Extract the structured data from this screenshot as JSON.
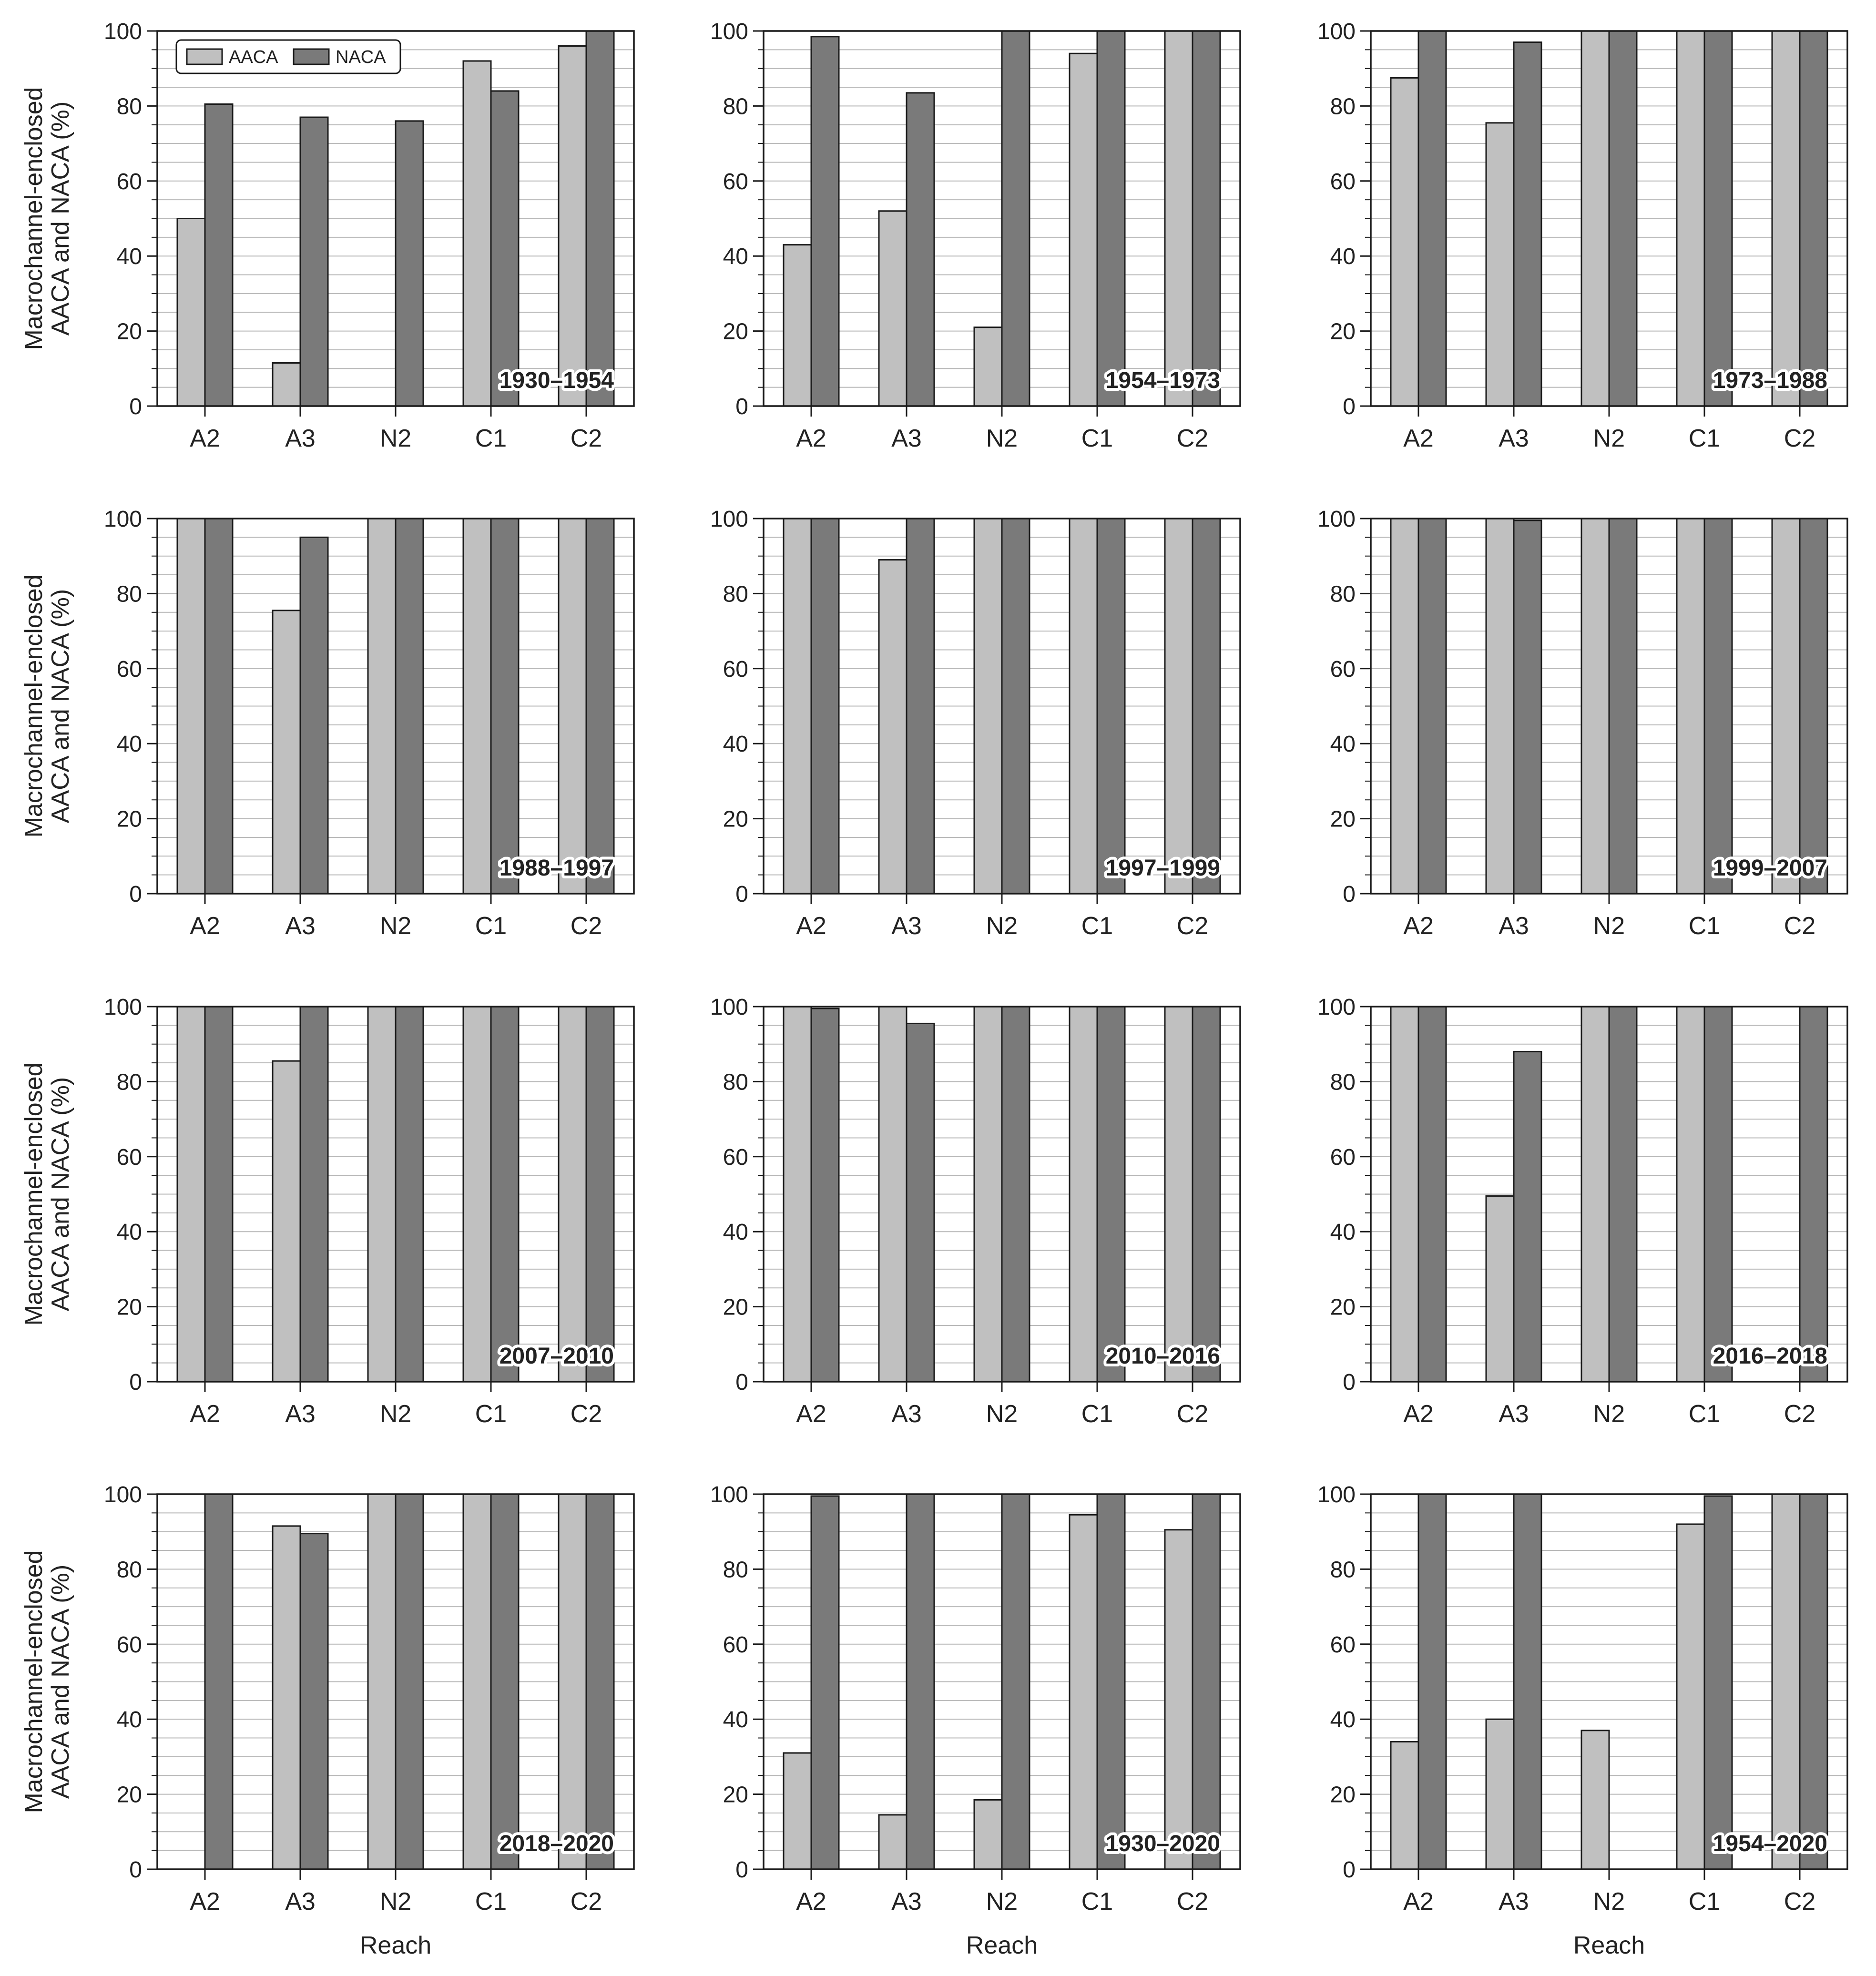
{
  "figure": {
    "y_axis_title_line1": "Macrochannel-enclosed",
    "y_axis_title_line2": "AACA and NACA (%)",
    "x_axis_title": "Reach",
    "legend": [
      {
        "name": "AACA",
        "color": "#c0c0c0"
      },
      {
        "name": "NACA",
        "color": "#7a7a7a"
      }
    ],
    "y_ticks": [
      0,
      20,
      40,
      60,
      80,
      100
    ]
  },
  "chart_data": [
    {
      "type": "bar",
      "title": "1930–1954",
      "xlabel": "",
      "ylabel": "Macrochannel-enclosed AACA and NACA (%)",
      "ylim": [
        0,
        100
      ],
      "categories": [
        "A2",
        "A3",
        "N2",
        "C1",
        "C2"
      ],
      "series": [
        {
          "name": "AACA",
          "values": [
            50,
            11.5,
            0,
            92,
            96
          ]
        },
        {
          "name": "NACA",
          "values": [
            80.5,
            77,
            76,
            84,
            100
          ]
        }
      ]
    },
    {
      "type": "bar",
      "title": "1954–1973",
      "xlabel": "",
      "ylabel": "",
      "ylim": [
        0,
        100
      ],
      "categories": [
        "A2",
        "A3",
        "N2",
        "C1",
        "C2"
      ],
      "series": [
        {
          "name": "AACA",
          "values": [
            43,
            52,
            21,
            94,
            100
          ]
        },
        {
          "name": "NACA",
          "values": [
            98.5,
            83.5,
            100,
            100,
            100
          ]
        }
      ]
    },
    {
      "type": "bar",
      "title": "1973–1988",
      "xlabel": "",
      "ylabel": "",
      "ylim": [
        0,
        100
      ],
      "categories": [
        "A2",
        "A3",
        "N2",
        "C1",
        "C2"
      ],
      "series": [
        {
          "name": "AACA",
          "values": [
            87.5,
            75.5,
            100,
            100,
            100
          ]
        },
        {
          "name": "NACA",
          "values": [
            100,
            97,
            100,
            100,
            100
          ]
        }
      ]
    },
    {
      "type": "bar",
      "title": "1988–1997",
      "xlabel": "",
      "ylabel": "Macrochannel-enclosed AACA and NACA (%)",
      "ylim": [
        0,
        100
      ],
      "categories": [
        "A2",
        "A3",
        "N2",
        "C1",
        "C2"
      ],
      "series": [
        {
          "name": "AACA",
          "values": [
            100,
            75.5,
            100,
            100,
            100
          ]
        },
        {
          "name": "NACA",
          "values": [
            100,
            95,
            100,
            100,
            100
          ]
        }
      ]
    },
    {
      "type": "bar",
      "title": "1997–1999",
      "xlabel": "",
      "ylabel": "",
      "ylim": [
        0,
        100
      ],
      "categories": [
        "A2",
        "A3",
        "N2",
        "C1",
        "C2"
      ],
      "series": [
        {
          "name": "AACA",
          "values": [
            100,
            89,
            100,
            100,
            100
          ]
        },
        {
          "name": "NACA",
          "values": [
            100,
            100,
            100,
            100,
            100
          ]
        }
      ]
    },
    {
      "type": "bar",
      "title": "1999–2007",
      "xlabel": "",
      "ylabel": "",
      "ylim": [
        0,
        100
      ],
      "categories": [
        "A2",
        "A3",
        "N2",
        "C1",
        "C2"
      ],
      "series": [
        {
          "name": "AACA",
          "values": [
            100,
            100,
            100,
            100,
            100
          ]
        },
        {
          "name": "NACA",
          "values": [
            100,
            99.5,
            100,
            100,
            100
          ]
        }
      ]
    },
    {
      "type": "bar",
      "title": "2007–2010",
      "xlabel": "",
      "ylabel": "Macrochannel-enclosed AACA and NACA (%)",
      "ylim": [
        0,
        100
      ],
      "categories": [
        "A2",
        "A3",
        "N2",
        "C1",
        "C2"
      ],
      "series": [
        {
          "name": "AACA",
          "values": [
            100,
            85.5,
            100,
            100,
            100
          ]
        },
        {
          "name": "NACA",
          "values": [
            100,
            100,
            100,
            100,
            100
          ]
        }
      ]
    },
    {
      "type": "bar",
      "title": "2010–2016",
      "xlabel": "",
      "ylabel": "",
      "ylim": [
        0,
        100
      ],
      "categories": [
        "A2",
        "A3",
        "N2",
        "C1",
        "C2"
      ],
      "series": [
        {
          "name": "AACA",
          "values": [
            100,
            100,
            100,
            100,
            100
          ]
        },
        {
          "name": "NACA",
          "values": [
            99.5,
            95.5,
            100,
            100,
            100
          ]
        }
      ]
    },
    {
      "type": "bar",
      "title": "2016–2018",
      "xlabel": "",
      "ylabel": "",
      "ylim": [
        0,
        100
      ],
      "categories": [
        "A2",
        "A3",
        "N2",
        "C1",
        "C2"
      ],
      "series": [
        {
          "name": "AACA",
          "values": [
            100,
            49.5,
            100,
            100,
            0
          ]
        },
        {
          "name": "NACA",
          "values": [
            100,
            88,
            100,
            100,
            100
          ]
        }
      ]
    },
    {
      "type": "bar",
      "title": "2018–2020",
      "xlabel": "Reach",
      "ylabel": "Macrochannel-enclosed AACA and NACA (%)",
      "ylim": [
        0,
        100
      ],
      "categories": [
        "A2",
        "A3",
        "N2",
        "C1",
        "C2"
      ],
      "series": [
        {
          "name": "AACA",
          "values": [
            0,
            91.5,
            100,
            100,
            100
          ]
        },
        {
          "name": "NACA",
          "values": [
            100,
            89.5,
            100,
            100,
            100
          ]
        }
      ]
    },
    {
      "type": "bar",
      "title": "1930–2020",
      "xlabel": "Reach",
      "ylabel": "",
      "ylim": [
        0,
        100
      ],
      "categories": [
        "A2",
        "A3",
        "N2",
        "C1",
        "C2"
      ],
      "series": [
        {
          "name": "AACA",
          "values": [
            31,
            14.5,
            18.5,
            94.5,
            90.5
          ]
        },
        {
          "name": "NACA",
          "values": [
            99.5,
            100,
            100,
            100,
            100
          ]
        }
      ]
    },
    {
      "type": "bar",
      "title": "1954–2020",
      "xlabel": "Reach",
      "ylabel": "",
      "ylim": [
        0,
        100
      ],
      "categories": [
        "A2",
        "A3",
        "N2",
        "C1",
        "C2"
      ],
      "series": [
        {
          "name": "AACA",
          "values": [
            34,
            40,
            37,
            92,
            100
          ]
        },
        {
          "name": "NACA",
          "values": [
            100,
            100,
            0,
            99.5,
            100
          ]
        }
      ]
    }
  ]
}
